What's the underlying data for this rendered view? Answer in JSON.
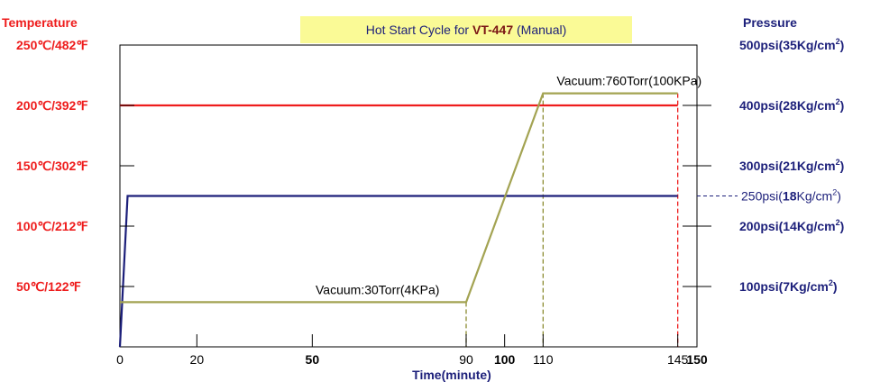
{
  "chart_data": {
    "type": "line",
    "title": {
      "prefix": "Hot Start Cycle for ",
      "model": "VT-447",
      "suffix": " (Manual)"
    },
    "left_axis": {
      "title": "Temperature",
      "range": [
        0,
        250
      ],
      "ticks": [
        {
          "value": 250,
          "label": "250℃/482℉"
        },
        {
          "value": 200,
          "label": "200℃/392℉"
        },
        {
          "value": 150,
          "label": "150℃/302℉"
        },
        {
          "value": 100,
          "label": "100℃/212℉"
        },
        {
          "value": 50,
          "label": "50℃/122℉"
        }
      ]
    },
    "right_axis": {
      "title": "Pressure",
      "range": [
        0,
        500
      ],
      "ticks": [
        {
          "value": 500,
          "label": "500psi(35Kg/cm",
          "sup": "2",
          "end": ")"
        },
        {
          "value": 400,
          "label": "400psi(28Kg/cm",
          "sup": "2",
          "end": ")"
        },
        {
          "value": 300,
          "label": "300psi(21Kg/cm",
          "sup": "2",
          "end": ")"
        },
        {
          "value": 200,
          "label": "200psi(14Kg/cm",
          "sup": "2",
          "end": ")"
        },
        {
          "value": 100,
          "label": "100psi(7Kg/cm",
          "sup": "2",
          "end": ")"
        }
      ],
      "annotation": {
        "value": 250,
        "pre": "250psi(",
        "bold": "18",
        "post": "Kg/cm",
        "sup": "2",
        "end": ")"
      }
    },
    "x_axis": {
      "title": "Time(minute)",
      "range": [
        0,
        150
      ],
      "ticks": [
        {
          "value": 0,
          "label": "0",
          "bold": false
        },
        {
          "value": 20,
          "label": "20",
          "bold": false
        },
        {
          "value": 50,
          "label": "50",
          "bold": true
        },
        {
          "value": 90,
          "label": "90",
          "bold": false
        },
        {
          "value": 100,
          "label": "100",
          "bold": true
        },
        {
          "value": 110,
          "label": "110",
          "bold": false
        },
        {
          "value": 145,
          "label": "145",
          "bold": false
        },
        {
          "value": 150,
          "label": "150",
          "bold": true
        }
      ]
    },
    "series": [
      {
        "name": "temperature",
        "axis": "left",
        "color": "#ee1c1c",
        "points": [
          [
            0,
            200
          ],
          [
            145,
            200
          ]
        ]
      },
      {
        "name": "pressure",
        "axis": "right",
        "color": "#1c1f7a",
        "points": [
          [
            0,
            0
          ],
          [
            2,
            250
          ],
          [
            145,
            250
          ]
        ]
      },
      {
        "name": "vacuum",
        "axis": "left",
        "color": "#a3a352",
        "points": [
          [
            0,
            37
          ],
          [
            90,
            37
          ],
          [
            110,
            210
          ],
          [
            145,
            210
          ]
        ]
      }
    ],
    "annotations": [
      {
        "text": "Vacuum:30Torr(4KPa)",
        "x": 62,
        "y": 37
      },
      {
        "text": "Vacuum:760Torr(100KPa)",
        "x": 114,
        "y": 210
      }
    ],
    "reference_lines": [
      {
        "x": 90,
        "from": 37,
        "color": "#8c8c32"
      },
      {
        "x": 110,
        "from": 210,
        "color": "#8c8c32"
      },
      {
        "x": 145,
        "from": 210,
        "color": "#ee1c1c"
      }
    ],
    "colors": {
      "temperature": "#ee1c1c",
      "pressure": "#1c1f7a",
      "vacuum": "#a3a352",
      "title_bg": "#fafa96"
    }
  }
}
